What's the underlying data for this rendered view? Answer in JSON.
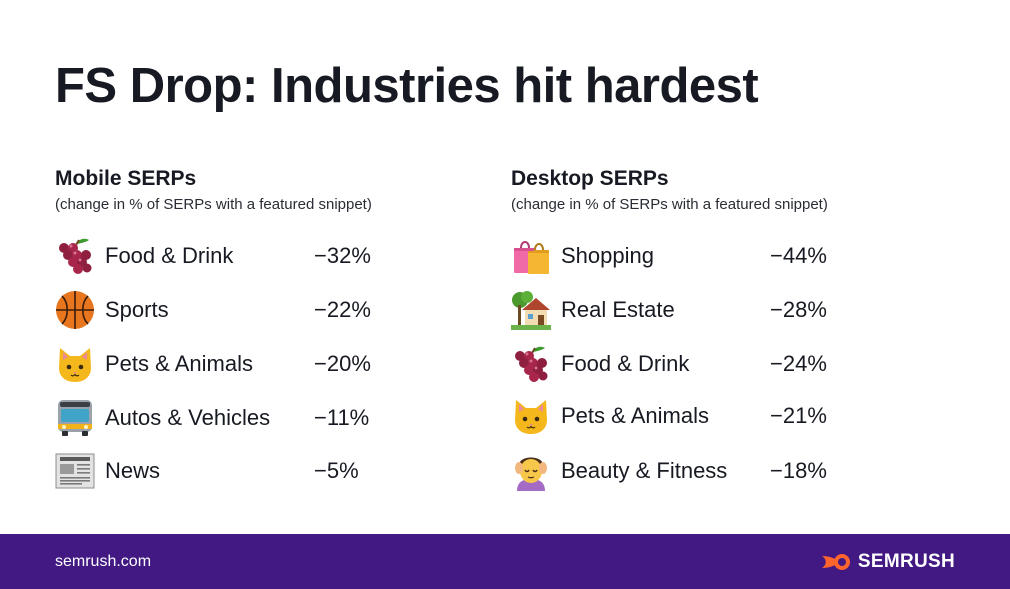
{
  "title": "FS Drop: Industries hit hardest",
  "mobile": {
    "heading": "Mobile SERPs",
    "subheading": "(change in % of SERPs with a featured snippet)",
    "rows": [
      {
        "icon": "grapes-icon",
        "label": "Food & Drink",
        "value": "−32%"
      },
      {
        "icon": "basketball-icon",
        "label": "Sports",
        "value": "−22%"
      },
      {
        "icon": "cat-face-icon",
        "label": "Pets & Animals",
        "value": "−20%"
      },
      {
        "icon": "bus-icon",
        "label": "Autos & Vehicles",
        "value": "−11%"
      },
      {
        "icon": "newspaper-icon",
        "label": "News",
        "value": "−5%"
      }
    ]
  },
  "desktop": {
    "heading": "Desktop SERPs",
    "subheading": "(change in % of SERPs with a featured snippet)",
    "rows": [
      {
        "icon": "shopping-bags-icon",
        "label": "Shopping",
        "value": "−44%"
      },
      {
        "icon": "house-with-garden-icon",
        "label": "Real Estate",
        "value": "−28%"
      },
      {
        "icon": "grapes-icon",
        "label": "Food & Drink",
        "value": "−24%"
      },
      {
        "icon": "cat-face-icon",
        "label": "Pets & Animals",
        "value": "−21%"
      },
      {
        "icon": "face-massage-icon",
        "label": "Beauty & Fitness",
        "value": "−18%"
      }
    ]
  },
  "footer": {
    "url": "semrush.com",
    "brand": "SEMRUSH"
  },
  "colors": {
    "footer_bg": "#421983",
    "brand_accent": "#ff642d",
    "text": "#171a22"
  }
}
